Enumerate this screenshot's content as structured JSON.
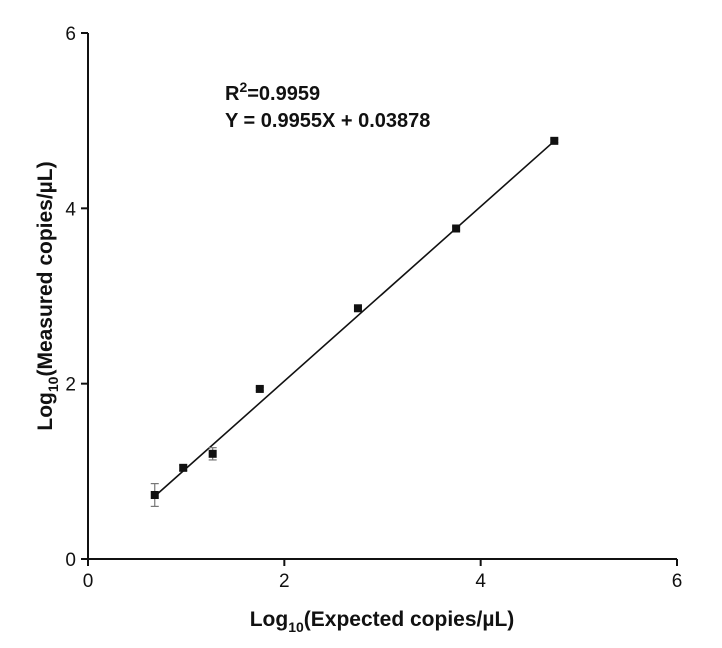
{
  "chart_data": {
    "type": "scatter",
    "x_label": {
      "base": "Log",
      "sub": "10",
      "rest": "(Expected copies/µL)"
    },
    "y_label": {
      "base": "Log",
      "sub": "10",
      "rest": "(Measured copies/µL)"
    },
    "r2_label": {
      "base": "R",
      "sup": "2",
      "rest": "=0.9959"
    },
    "fit": {
      "label": "Y = 0.9955X + 0.03878",
      "slope": 0.9955,
      "intercept": 0.03878
    },
    "x": [
      0.68,
      0.97,
      1.27,
      1.75,
      2.75,
      3.75,
      4.75
    ],
    "values": [
      0.73,
      1.04,
      1.2,
      1.94,
      2.86,
      3.77,
      4.77
    ],
    "errors": [
      0.13,
      0.03,
      0.07,
      0.02,
      0.02,
      0.02,
      0.02
    ],
    "color": "#111111",
    "xlim": [
      0,
      6
    ],
    "xticks": [
      0,
      2,
      4,
      6
    ],
    "ylim": [
      0,
      6
    ],
    "yticks": [
      0,
      2,
      4,
      6
    ]
  }
}
